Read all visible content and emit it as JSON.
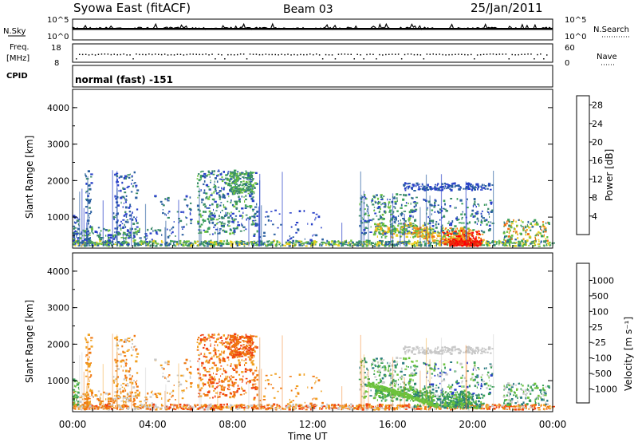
{
  "header": {
    "title": "Syowa East (fitACF)",
    "beam": "Beam 03",
    "date": "25/Jan/2011"
  },
  "panels": {
    "nsky": {
      "label": "N.Sky",
      "ticks": [
        "10^5",
        "10^0"
      ],
      "right_label": "N.Search",
      "right_ticks": [
        "10^5",
        "10^0"
      ]
    },
    "freq": {
      "label": "Freq.",
      "unit": "[MHz]",
      "ticks": [
        "18",
        "8"
      ],
      "right_label": "Nave",
      "right_ticks": [
        "60",
        "0"
      ]
    },
    "cpid": {
      "label": "CPID",
      "text": "normal (fast) -151"
    }
  },
  "colors": {
    "power": [
      "#1020f0",
      "#2840c8",
      "#2a5fa0",
      "#3a8a6a",
      "#3aa058",
      "#6cc23c",
      "#e8d020",
      "#f0a020",
      "#f07010",
      "#e83010",
      "#ff0000"
    ],
    "velocity": [
      "#ff0000",
      "#f04010",
      "#f07810",
      "#f0a020",
      "#c8c8c8",
      "#c8c8c8",
      "#6cc23c",
      "#3aa058",
      "#2a7a80",
      "#2840c8",
      "#1020f0"
    ]
  },
  "chart_data": [
    {
      "type": "heatmap",
      "name": "power",
      "ylabel": "Slant Range [km]",
      "yticks": [
        "1000",
        "2000",
        "3000",
        "4000"
      ],
      "ylim": [
        150,
        4500
      ],
      "xlim": [
        0,
        24
      ],
      "colorbar": {
        "label": "Power [dB]",
        "ticks": [
          "4",
          "8",
          "12",
          "16",
          "20",
          "24",
          "28"
        ],
        "range": [
          0,
          30
        ]
      }
    },
    {
      "type": "heatmap",
      "name": "velocity",
      "xlabel": "Time UT",
      "xticks": [
        "00:00",
        "04:00",
        "08:00",
        "12:00",
        "16:00",
        "20:00",
        "00:00"
      ],
      "ylabel": "Slant Range [km]",
      "yticks": [
        "1000",
        "2000",
        "3000",
        "4000"
      ],
      "ylim": [
        150,
        4500
      ],
      "xlim": [
        0,
        24
      ],
      "colorbar": {
        "label": "Velocity [m s⁻¹]",
        "ticks": [
          "1000",
          "500",
          "100",
          "25",
          "-25",
          "-100",
          "-500",
          "-1000"
        ]
      }
    }
  ]
}
